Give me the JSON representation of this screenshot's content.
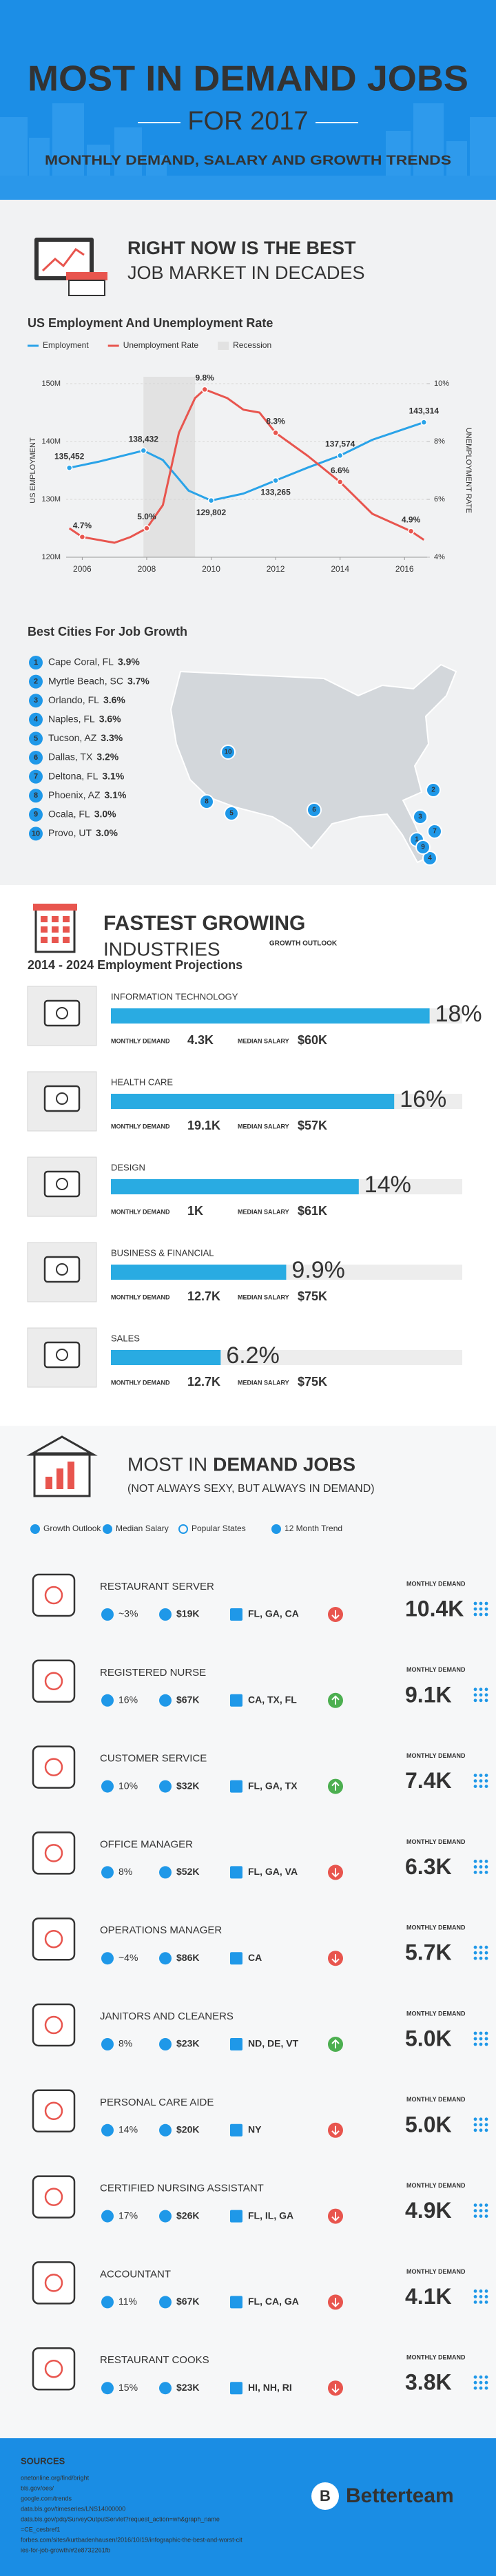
{
  "header": {
    "title": "MOST IN DEMAND JOBS",
    "year": "FOR 2017",
    "subtitle": "MONTHLY DEMAND, SALARY AND GROWTH TRENDS"
  },
  "market": {
    "heading_bold": "RIGHT NOW IS THE BEST",
    "heading": "JOB MARKET IN DECADES"
  },
  "chart_data": {
    "type": "line",
    "title": "US Employment And Unemployment Rate",
    "y_label": "US EMPLOYMENT",
    "y2_label": "UNEMPLOYMENT RATE",
    "xlim": [
      2005.5,
      2016.7
    ],
    "xticks": [
      2006,
      2008,
      2010,
      2012,
      2014,
      2016
    ],
    "ylim": [
      120,
      150
    ],
    "yticks": [
      {
        "value": 120,
        "label": "120M"
      },
      {
        "value": 130,
        "label": "130M"
      },
      {
        "value": 140,
        "label": "140M"
      },
      {
        "value": 150,
        "label": "150M"
      }
    ],
    "y2lim": [
      4,
      10
    ],
    "y2ticks": [
      {
        "value": 4,
        "label": "4%"
      },
      {
        "value": 6,
        "label": "6%"
      },
      {
        "value": 8,
        "label": "8%"
      },
      {
        "value": 10,
        "label": "10%"
      }
    ],
    "grid": true,
    "recession": {
      "name": "Recession",
      "x": [
        2007.9,
        2009.5
      ],
      "color": "#e2e2e2"
    },
    "series": [
      {
        "name": "Employment",
        "color": "#2aa3e8",
        "axis": "y",
        "x": [
          2005.6,
          2006.5,
          2007.9,
          2008.5,
          2009.3,
          2010,
          2011,
          2012,
          2013,
          2014,
          2015,
          2016.6
        ],
        "values": [
          135.452,
          136.5,
          138.432,
          136.8,
          131.5,
          129.802,
          131,
          133.265,
          135.5,
          137.574,
          140.3,
          143.314
        ],
        "value_labels": [
          "135,452",
          null,
          "138,432",
          null,
          null,
          "129,802",
          null,
          "133,265",
          null,
          "137,574",
          null,
          "143,314"
        ]
      },
      {
        "name": "Unemployment Rate",
        "color": "#e8554e",
        "axis": "y2",
        "x": [
          2005.6,
          2006,
          2006.5,
          2007,
          2007.5,
          2008,
          2008.5,
          2009,
          2009.5,
          2009.8,
          2010.5,
          2011,
          2011.5,
          2012,
          2013,
          2014,
          2015,
          2016.2,
          2016.6
        ],
        "values": [
          5.0,
          4.7,
          4.6,
          4.5,
          4.7,
          5.0,
          5.8,
          8.3,
          9.5,
          9.8,
          9.5,
          9.1,
          9.0,
          8.3,
          7.5,
          6.6,
          5.5,
          4.9,
          4.6
        ],
        "value_labels": [
          null,
          "4.7%",
          null,
          null,
          null,
          "5.0%",
          null,
          null,
          null,
          "9.8%",
          null,
          null,
          null,
          "8.3%",
          null,
          "6.6%",
          null,
          "4.9%",
          null
        ]
      }
    ]
  },
  "cities": {
    "title": "Best Cities For Job Growth",
    "items": [
      {
        "rank": 1,
        "city": "Cape Coral, FL",
        "growth": "3.9%"
      },
      {
        "rank": 2,
        "city": "Myrtle Beach, SC",
        "growth": "3.7%"
      },
      {
        "rank": 3,
        "city": "Orlando, FL",
        "growth": "3.6%"
      },
      {
        "rank": 4,
        "city": "Naples, FL",
        "growth": "3.6%"
      },
      {
        "rank": 5,
        "city": "Tucson, AZ",
        "growth": "3.3%"
      },
      {
        "rank": 6,
        "city": "Dallas, TX",
        "growth": "3.2%"
      },
      {
        "rank": 7,
        "city": "Deltona, FL",
        "growth": "3.1%"
      },
      {
        "rank": 8,
        "city": "Phoenix, AZ",
        "growth": "3.1%"
      },
      {
        "rank": 9,
        "city": "Ocala, FL",
        "growth": "3.0%"
      },
      {
        "rank": 10,
        "city": "Provo, UT",
        "growth": "3.0%"
      }
    ]
  },
  "industries": {
    "heading_bold": "FASTEST GROWING",
    "heading": "INDUSTRIES",
    "outlook_label": "GROWTH OUTLOOK",
    "subtitle": "2014 - 2024 Employment Projections",
    "demand_label": "MONTHLY DEMAND",
    "salary_label": "MEDIAN SALARY",
    "items": [
      {
        "name": "INFORMATION TECHNOLOGY",
        "growth": 18,
        "growth_label": "18%",
        "demand": "4.3K",
        "salary": "$60K"
      },
      {
        "name": "HEALTH CARE",
        "growth": 16,
        "growth_label": "16%",
        "demand": "19.1K",
        "salary": "$57K"
      },
      {
        "name": "DESIGN",
        "growth": 14,
        "growth_label": "14%",
        "demand": "1K",
        "salary": "$61K"
      },
      {
        "name": "BUSINESS & FINANCIAL",
        "growth": 9.9,
        "growth_label": "9.9%",
        "demand": "12.7K",
        "salary": "$75K"
      },
      {
        "name": "SALES",
        "growth": 6.2,
        "growth_label": "6.2%",
        "demand": "12.7K",
        "salary": "$75K"
      }
    ]
  },
  "jobs": {
    "title_regular": "MOST IN",
    "title_bold": "DEMAND JOBS",
    "subtitle": "(NOT ALWAYS SEXY, BUT ALWAYS IN DEMAND)",
    "legend": [
      "Growth Outlook",
      "Median Salary",
      "Popular States",
      "12 Month Trend"
    ],
    "demand_label": "MONTHLY DEMAND",
    "items": [
      {
        "name": "RESTAURANT SERVER",
        "growth": "~3%",
        "salary": "$19K",
        "states": "FL, GA, CA",
        "trend": "down",
        "demand": "10.4K"
      },
      {
        "name": "REGISTERED NURSE",
        "growth": "16%",
        "salary": "$67K",
        "states": "CA, TX, FL",
        "trend": "up",
        "demand": "9.1K"
      },
      {
        "name": "CUSTOMER SERVICE",
        "growth": "10%",
        "salary": "$32K",
        "states": "FL, GA, TX",
        "trend": "up",
        "demand": "7.4K"
      },
      {
        "name": "OFFICE MANAGER",
        "growth": "8%",
        "salary": "$52K",
        "states": "FL, GA, VA",
        "trend": "down",
        "demand": "6.3K"
      },
      {
        "name": "OPERATIONS MANAGER",
        "growth": "~4%",
        "salary": "$86K",
        "states": "CA",
        "trend": "down",
        "demand": "5.7K"
      },
      {
        "name": "JANITORS AND CLEANERS",
        "growth": "8%",
        "salary": "$23K",
        "states": "ND, DE, VT",
        "trend": "up",
        "demand": "5.0K"
      },
      {
        "name": "PERSONAL CARE AIDE",
        "growth": "14%",
        "salary": "$20K",
        "states": "NY",
        "trend": "down",
        "demand": "5.0K"
      },
      {
        "name": "CERTIFIED NURSING ASSISTANT",
        "growth": "17%",
        "salary": "$26K",
        "states": "FL, IL, GA",
        "trend": "down",
        "demand": "4.9K"
      },
      {
        "name": "ACCOUNTANT",
        "growth": "11%",
        "salary": "$67K",
        "states": "FL, CA, GA",
        "trend": "down",
        "demand": "4.1K"
      },
      {
        "name": "RESTAURANT COOKS",
        "growth": "15%",
        "salary": "$23K",
        "states": "HI, NH, RI",
        "trend": "down",
        "demand": "3.8K"
      }
    ]
  },
  "footer": {
    "sources_title": "SOURCES",
    "sources": [
      "onetonline.org/find/bright",
      "bls.gov/oes/",
      "google.com/trends",
      "data.bls.gov/timeseries/LNS14000000",
      "data.bls.gov/pdq/SurveyOutputServlet?request_action=wh&graph_name",
      "=CE_cesbref1",
      "forbes.com/sites/kurtbadenhausen/2016/10/19/infographic-the-best-and-worst-cit",
      "ies-for-job-growth/#2e8732261fb"
    ],
    "logo": "B",
    "brand": "Betterteam"
  }
}
